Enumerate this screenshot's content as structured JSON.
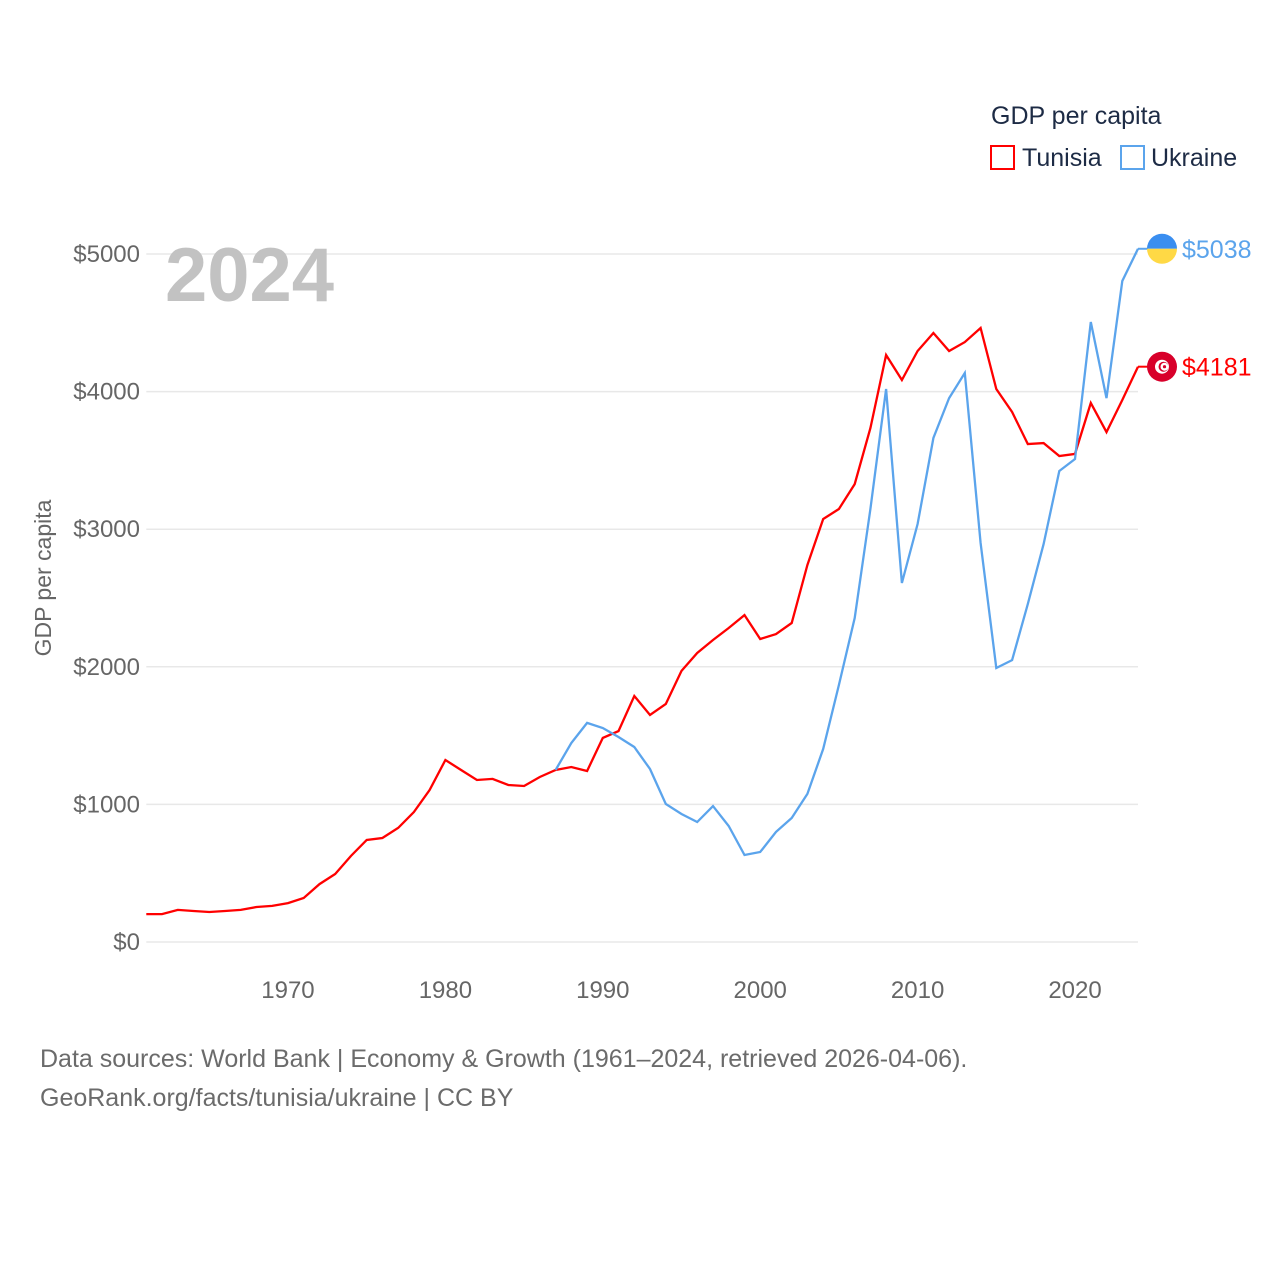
{
  "chart_data": {
    "type": "line",
    "title": "GDP per capita",
    "year_label": "2024",
    "ylabel": "GDP per capita",
    "xlabel": "",
    "xlim": [
      1961,
      2024
    ],
    "ylim": [
      0,
      5000
    ],
    "grid": true,
    "legend_placement": "top-right",
    "x_ticks": [
      1970,
      1980,
      1990,
      2000,
      2010,
      2020
    ],
    "y_ticks": [
      0,
      1000,
      2000,
      3000,
      4000,
      5000
    ],
    "y_tick_labels": [
      "$0",
      "$1000",
      "$2000",
      "$3000",
      "$4000",
      "$5000"
    ],
    "series": [
      {
        "name": "Tunisia",
        "color": "#ff0000",
        "flag": "tunisia-flag",
        "end_label": "$4181",
        "start_year": 1961,
        "values": [
          203,
          203,
          233,
          225,
          218,
          225,
          233,
          254,
          262,
          283,
          320,
          421,
          494,
          625,
          741,
          756,
          829,
          945,
          1105,
          1323,
          1250,
          1177,
          1185,
          1141,
          1134,
          1199,
          1250,
          1272,
          1243,
          1483,
          1533,
          1788,
          1650,
          1730,
          1970,
          2100,
          2195,
          2282,
          2376,
          2202,
          2238,
          2318,
          2740,
          3074,
          3147,
          3328,
          3735,
          4266,
          4084,
          4295,
          4426,
          4295,
          4360,
          4462,
          4019,
          3852,
          3619,
          3626,
          3532,
          3547,
          3917,
          3706,
          3939,
          4181
        ]
      },
      {
        "name": "Ukraine",
        "color": "#5ba4ec",
        "flag": "ukraine-flag",
        "end_label": "$5038",
        "start_year": 1987,
        "values": [
          1250,
          1446,
          1592,
          1555,
          1490,
          1417,
          1257,
          1003,
          930,
          872,
          988,
          843,
          632,
          654,
          800,
          901,
          1076,
          1403,
          1868,
          2355,
          3147,
          4019,
          2609,
          3038,
          3663,
          3953,
          4135,
          2900,
          1991,
          2049,
          2456,
          2892,
          3423,
          3510,
          4506,
          3953,
          4804,
          5038
        ]
      }
    ]
  },
  "footer": {
    "line1": "Data sources: World Bank | Economy & Growth (1961–2024, retrieved 2026-04-06).",
    "line2": "GeoRank.org/facts/tunisia/ukraine | CC BY"
  }
}
